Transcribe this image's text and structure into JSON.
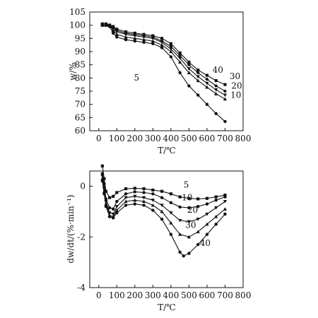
{
  "chart_data": [
    {
      "type": "line",
      "xlabel": "T/℃",
      "ylabel": "w/%",
      "xlim": [
        -50,
        800
      ],
      "ylim": [
        60,
        105
      ],
      "xticks": [
        0,
        100,
        200,
        300,
        400,
        500,
        600,
        700,
        800
      ],
      "yticks": [
        60,
        65,
        70,
        75,
        80,
        85,
        90,
        95,
        100,
        105
      ],
      "grid": false,
      "series": [
        {
          "name": "5",
          "marker": "circle",
          "points": [
            [
              20,
              100
            ],
            [
              40,
              100
            ],
            [
              60,
              99.5
            ],
            [
              80,
              97
            ],
            [
              100,
              95.5
            ],
            [
              150,
              94.5
            ],
            [
              200,
              94
            ],
            [
              250,
              93.5
            ],
            [
              300,
              93
            ],
            [
              350,
              91.5
            ],
            [
              400,
              88
            ],
            [
              450,
              82
            ],
            [
              500,
              77
            ],
            [
              550,
              73.5
            ],
            [
              600,
              70
            ],
            [
              650,
              66.5
            ],
            [
              700,
              63.5
            ]
          ]
        },
        {
          "name": "10",
          "marker": "triangle-up",
          "points": [
            [
              20,
              100
            ],
            [
              40,
              100
            ],
            [
              60,
              100
            ],
            [
              80,
              98
            ],
            [
              100,
              96.5
            ],
            [
              150,
              95.5
            ],
            [
              200,
              95
            ],
            [
              250,
              94.5
            ],
            [
              300,
              94
            ],
            [
              350,
              92.5
            ],
            [
              400,
              90
            ],
            [
              450,
              86
            ],
            [
              500,
              82
            ],
            [
              550,
              79
            ],
            [
              600,
              76.5
            ],
            [
              650,
              74
            ],
            [
              700,
              72
            ]
          ]
        },
        {
          "name": "20",
          "marker": "triangle-down",
          "points": [
            [
              20,
              100
            ],
            [
              40,
              100
            ],
            [
              60,
              100
            ],
            [
              80,
              98.5
            ],
            [
              100,
              97.5
            ],
            [
              150,
              96.5
            ],
            [
              200,
              96
            ],
            [
              250,
              95.5
            ],
            [
              300,
              95
            ],
            [
              350,
              93.5
            ],
            [
              400,
              91
            ],
            [
              450,
              87.5
            ],
            [
              500,
              83.5
            ],
            [
              550,
              80.5
            ],
            [
              600,
              78
            ],
            [
              650,
              75.5
            ],
            [
              700,
              73.5
            ]
          ]
        },
        {
          "name": "30",
          "marker": "diamond",
          "points": [
            [
              20,
              100
            ],
            [
              40,
              100
            ],
            [
              60,
              100
            ],
            [
              80,
              99
            ],
            [
              100,
              98
            ],
            [
              150,
              97
            ],
            [
              200,
              96.5
            ],
            [
              250,
              96
            ],
            [
              300,
              95.5
            ],
            [
              350,
              94
            ],
            [
              400,
              92
            ],
            [
              450,
              88.5
            ],
            [
              500,
              85
            ],
            [
              550,
              82
            ],
            [
              600,
              79.5
            ],
            [
              650,
              77
            ],
            [
              700,
              75
            ]
          ]
        },
        {
          "name": "40",
          "marker": "square",
          "points": [
            [
              20,
              100.5
            ],
            [
              40,
              100.5
            ],
            [
              60,
              100
            ],
            [
              80,
              99.5
            ],
            [
              100,
              98.5
            ],
            [
              150,
              97.5
            ],
            [
              200,
              97
            ],
            [
              250,
              96.5
            ],
            [
              300,
              96
            ],
            [
              350,
              95
            ],
            [
              400,
              93
            ],
            [
              450,
              89.5
            ],
            [
              500,
              86
            ],
            [
              550,
              83
            ],
            [
              600,
              81
            ],
            [
              650,
              79
            ],
            [
              700,
              77.5
            ]
          ]
        }
      ],
      "annotations": [
        {
          "text": "5",
          "x": 195,
          "y": 79
        },
        {
          "text": "10",
          "x": 730,
          "y": 72.5
        },
        {
          "text": "20",
          "x": 735,
          "y": 76
        },
        {
          "text": "30",
          "x": 725,
          "y": 79.5
        },
        {
          "text": "40",
          "x": 630,
          "y": 82
        }
      ]
    },
    {
      "type": "line",
      "xlabel": "T/℃",
      "ylabel": "dw/dt/(%·min⁻¹)",
      "xlim": [
        -50,
        800
      ],
      "ylim": [
        -4,
        0.6
      ],
      "xticks": [
        0,
        100,
        200,
        300,
        400,
        500,
        600,
        700,
        800
      ],
      "yticks": [
        -4,
        -2,
        0
      ],
      "grid": false,
      "series": [
        {
          "name": "5",
          "marker": "square",
          "points": [
            [
              20,
              0.8
            ],
            [
              30,
              0.3
            ],
            [
              40,
              -0.2
            ],
            [
              60,
              -0.45
            ],
            [
              80,
              -0.4
            ],
            [
              100,
              -0.25
            ],
            [
              150,
              -0.1
            ],
            [
              200,
              -0.08
            ],
            [
              250,
              -0.1
            ],
            [
              300,
              -0.15
            ],
            [
              350,
              -0.2
            ],
            [
              400,
              -0.3
            ],
            [
              450,
              -0.42
            ],
            [
              500,
              -0.48
            ],
            [
              550,
              -0.5
            ],
            [
              600,
              -0.48
            ],
            [
              650,
              -0.42
            ],
            [
              700,
              -0.35
            ]
          ]
        },
        {
          "name": "10",
          "marker": "circle",
          "points": [
            [
              20,
              0.5
            ],
            [
              30,
              0.1
            ],
            [
              40,
              -0.5
            ],
            [
              60,
              -0.85
            ],
            [
              80,
              -0.9
            ],
            [
              100,
              -0.6
            ],
            [
              150,
              -0.3
            ],
            [
              200,
              -0.22
            ],
            [
              250,
              -0.25
            ],
            [
              300,
              -0.3
            ],
            [
              350,
              -0.45
            ],
            [
              400,
              -0.65
            ],
            [
              450,
              -0.82
            ],
            [
              500,
              -0.85
            ],
            [
              550,
              -0.8
            ],
            [
              600,
              -0.7
            ],
            [
              650,
              -0.55
            ],
            [
              700,
              -0.42
            ]
          ]
        },
        {
          "name": "20",
          "marker": "triangle-down",
          "points": [
            [
              20,
              0.4
            ],
            [
              30,
              -0.1
            ],
            [
              40,
              -0.6
            ],
            [
              60,
              -1.05
            ],
            [
              80,
              -1.1
            ],
            [
              100,
              -0.8
            ],
            [
              150,
              -0.45
            ],
            [
              200,
              -0.4
            ],
            [
              250,
              -0.45
            ],
            [
              300,
              -0.55
            ],
            [
              350,
              -0.75
            ],
            [
              400,
              -1.05
            ],
            [
              450,
              -1.35
            ],
            [
              500,
              -1.4
            ],
            [
              550,
              -1.3
            ],
            [
              600,
              -1.1
            ],
            [
              650,
              -0.85
            ],
            [
              700,
              -0.6
            ]
          ]
        },
        {
          "name": "30",
          "marker": "triangle-up",
          "points": [
            [
              20,
              0.3
            ],
            [
              30,
              -0.2
            ],
            [
              40,
              -0.7
            ],
            [
              60,
              -1.15
            ],
            [
              80,
              -1.2
            ],
            [
              100,
              -0.95
            ],
            [
              150,
              -0.6
            ],
            [
              200,
              -0.55
            ],
            [
              250,
              -0.6
            ],
            [
              300,
              -0.75
            ],
            [
              350,
              -1.0
            ],
            [
              400,
              -1.45
            ],
            [
              450,
              -1.9
            ],
            [
              500,
              -2.0
            ],
            [
              550,
              -1.8
            ],
            [
              600,
              -1.5
            ],
            [
              650,
              -1.2
            ],
            [
              700,
              -0.9
            ]
          ]
        },
        {
          "name": "40",
          "marker": "circle",
          "points": [
            [
              20,
              0.2
            ],
            [
              30,
              -0.3
            ],
            [
              40,
              -0.8
            ],
            [
              60,
              -1.2
            ],
            [
              80,
              -1.25
            ],
            [
              100,
              -1.05
            ],
            [
              150,
              -0.75
            ],
            [
              200,
              -0.7
            ],
            [
              250,
              -0.75
            ],
            [
              300,
              -0.95
            ],
            [
              350,
              -1.3
            ],
            [
              400,
              -1.9
            ],
            [
              450,
              -2.6
            ],
            [
              470,
              -2.75
            ],
            [
              500,
              -2.65
            ],
            [
              550,
              -2.3
            ],
            [
              600,
              -1.9
            ],
            [
              650,
              -1.5
            ],
            [
              700,
              -1.1
            ]
          ]
        }
      ],
      "annotations": [
        {
          "text": "5",
          "x": 470,
          "y": -0.05
        },
        {
          "text": "10",
          "x": 460,
          "y": -0.55
        },
        {
          "text": "20",
          "x": 490,
          "y": -1.05
        },
        {
          "text": "30",
          "x": 480,
          "y": -1.65
        },
        {
          "text": "40",
          "x": 560,
          "y": -2.35
        }
      ]
    }
  ]
}
